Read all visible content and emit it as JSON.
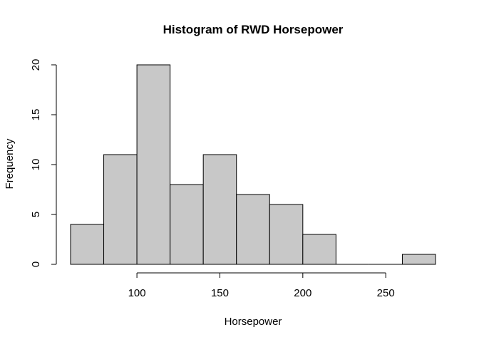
{
  "chart_data": {
    "type": "bar",
    "title": "Histogram of RWD Horsepower",
    "xlabel": "Horsepower",
    "ylabel": "Frequency",
    "bins": [
      {
        "x0": 60,
        "x1": 80,
        "count": 4
      },
      {
        "x0": 80,
        "x1": 100,
        "count": 11
      },
      {
        "x0": 100,
        "x1": 120,
        "count": 20
      },
      {
        "x0": 120,
        "x1": 140,
        "count": 8
      },
      {
        "x0": 140,
        "x1": 160,
        "count": 11
      },
      {
        "x0": 160,
        "x1": 180,
        "count": 7
      },
      {
        "x0": 180,
        "x1": 200,
        "count": 6
      },
      {
        "x0": 200,
        "x1": 220,
        "count": 3
      },
      {
        "x0": 220,
        "x1": 240,
        "count": 0
      },
      {
        "x0": 240,
        "x1": 260,
        "count": 0
      },
      {
        "x0": 260,
        "x1": 280,
        "count": 1
      }
    ],
    "xticks": [
      100,
      150,
      200,
      250
    ],
    "yticks": [
      0,
      5,
      10,
      15,
      20
    ],
    "xlim": [
      60,
      280
    ],
    "ylim": [
      0,
      20
    ],
    "bar_fill": "#c8c8c8",
    "bar_stroke": "#000000",
    "grid": false,
    "legend": "none"
  }
}
